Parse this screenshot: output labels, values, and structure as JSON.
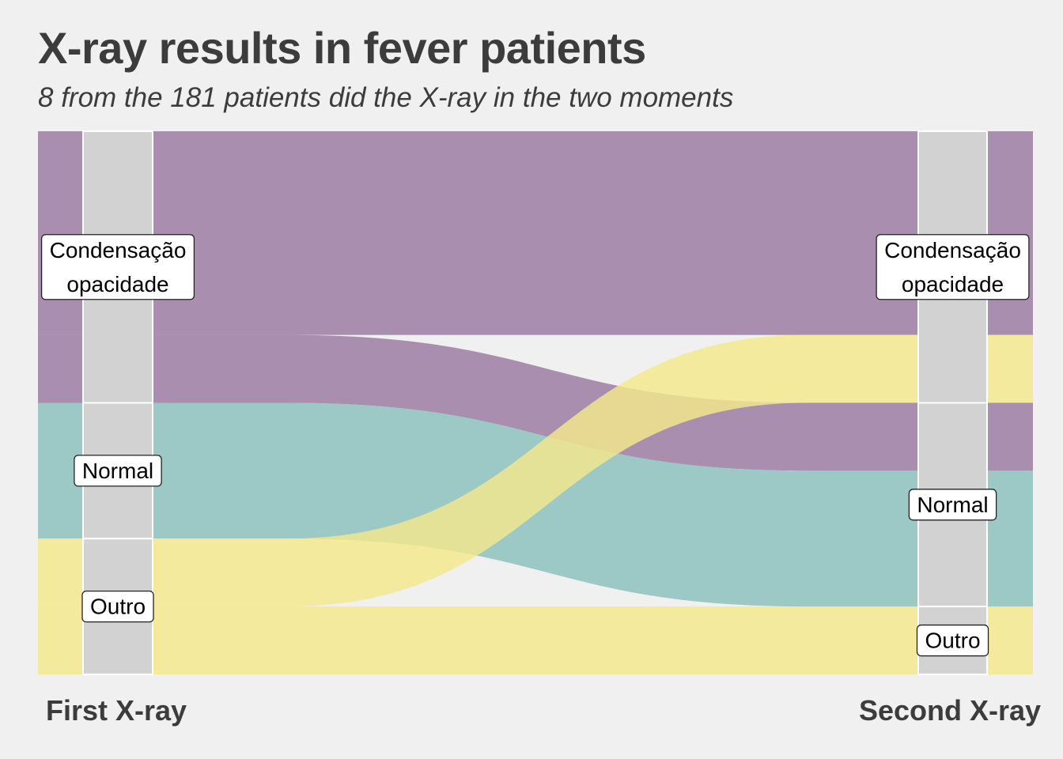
{
  "title": "X-ray results in fever patients",
  "subtitle": "8 from the 181 patients did the X-ray in the two moments",
  "colors": {
    "background": "#f0f0f0",
    "Condensação opacidade": "#9a78a1",
    "Normal": "#89bebc",
    "Outro": "#f4e88b",
    "stratum_fill": "#9c9c9c",
    "stratum_border": "#ffffff"
  },
  "chart_data": {
    "type": "alluvial",
    "axes": [
      "First X-ray",
      "Second X-ray"
    ],
    "categories": [
      "Condensação opacidade",
      "Normal",
      "Outro"
    ],
    "category_labels": {
      "Condensação opacidade": [
        "Condensação",
        "opacidade"
      ],
      "Normal": [
        "Normal"
      ],
      "Outro": [
        "Outro"
      ]
    },
    "total": 8,
    "strata": {
      "First X-ray": [
        {
          "category": "Condensação opacidade",
          "count": 4
        },
        {
          "category": "Normal",
          "count": 2
        },
        {
          "category": "Outro",
          "count": 2
        }
      ],
      "Second X-ray": [
        {
          "category": "Condensação opacidade",
          "count": 4
        },
        {
          "category": "Normal",
          "count": 3
        },
        {
          "category": "Outro",
          "count": 1
        }
      ]
    },
    "flows": [
      {
        "from": "Condensação opacidade",
        "to": "Condensação opacidade",
        "count": 3
      },
      {
        "from": "Condensação opacidade",
        "to": "Normal",
        "count": 1
      },
      {
        "from": "Normal",
        "to": "Normal",
        "count": 2
      },
      {
        "from": "Outro",
        "to": "Condensação opacidade",
        "count": 1
      },
      {
        "from": "Outro",
        "to": "Outro",
        "count": 1
      }
    ]
  }
}
